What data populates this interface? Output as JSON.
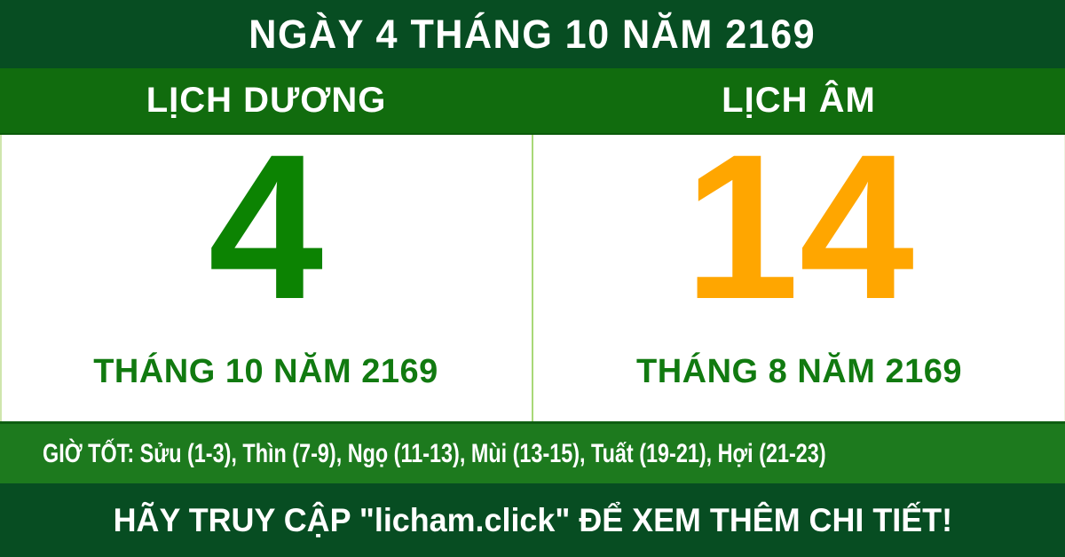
{
  "colors": {
    "dark_green": "#074d22",
    "row_green": "#116c0e",
    "bar_green": "#1d7a1e",
    "solar_green": "#0c8302",
    "lunar_orange": "#ffa600",
    "month_green": "#117a10",
    "divider_green": "#a8d878"
  },
  "header": {
    "title": "NGÀY 4 THÁNG 10 NĂM 2169"
  },
  "calendars": {
    "solar": {
      "label": "LỊCH DƯƠNG",
      "day": "4",
      "month_year": "THÁNG 10 NĂM 2169"
    },
    "lunar": {
      "label": "LỊCH ÂM",
      "day": "14",
      "month_year": "THÁNG 8 NĂM 2169"
    }
  },
  "good_hours": {
    "text": "GIỜ TỐT: Sửu (1-3), Thìn (7-9), Ngọ (11-13), Mùi (13-15), Tuất (19-21), Hợi (21-23)"
  },
  "footer": {
    "text": "HÃY TRUY CẬP \"licham.click\" ĐỂ XEM THÊM CHI TIẾT!"
  }
}
